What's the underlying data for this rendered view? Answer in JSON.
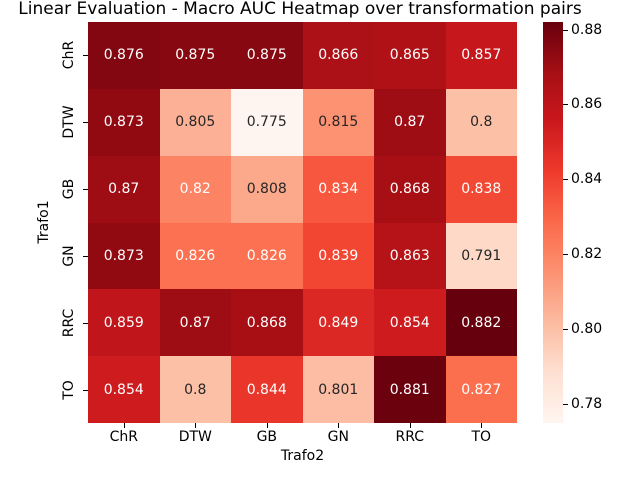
{
  "chart_data": {
    "type": "heatmap",
    "title": "Linear Evaluation - Macro AUC Heatmap over transformation pairs",
    "xlabel": "Trafo2",
    "ylabel": "Trafo1",
    "x_categories": [
      "ChR",
      "DTW",
      "GB",
      "GN",
      "RRC",
      "TO"
    ],
    "y_categories": [
      "ChR",
      "DTW",
      "GB",
      "GN",
      "RRC",
      "TO"
    ],
    "values": [
      [
        0.876,
        0.875,
        0.875,
        0.866,
        0.865,
        0.857
      ],
      [
        0.873,
        0.805,
        0.775,
        0.815,
        0.87,
        0.8
      ],
      [
        0.87,
        0.82,
        0.808,
        0.834,
        0.868,
        0.838
      ],
      [
        0.873,
        0.826,
        0.826,
        0.839,
        0.863,
        0.791
      ],
      [
        0.859,
        0.87,
        0.868,
        0.849,
        0.854,
        0.882
      ],
      [
        0.854,
        0.8,
        0.844,
        0.801,
        0.881,
        0.827
      ]
    ],
    "vmin": 0.775,
    "vmax": 0.882,
    "grid": false,
    "legend": "colorbar-right",
    "colorbar_ticks": [
      {
        "value": 0.88,
        "label": "0.88"
      },
      {
        "value": 0.86,
        "label": "0.86"
      },
      {
        "value": 0.84,
        "label": "0.84"
      },
      {
        "value": 0.82,
        "label": "0.82"
      },
      {
        "value": 0.8,
        "label": "0.80"
      },
      {
        "value": 0.78,
        "label": "0.78"
      }
    ],
    "colormap": {
      "name": "Reds",
      "anchors": [
        {
          "pos": 0.0,
          "rgb": [
            255,
            245,
            240
          ]
        },
        {
          "pos": 0.125,
          "rgb": [
            254,
            224,
            210
          ]
        },
        {
          "pos": 0.25,
          "rgb": [
            252,
            187,
            161
          ]
        },
        {
          "pos": 0.375,
          "rgb": [
            252,
            146,
            114
          ]
        },
        {
          "pos": 0.5,
          "rgb": [
            251,
            106,
            74
          ]
        },
        {
          "pos": 0.625,
          "rgb": [
            239,
            59,
            44
          ]
        },
        {
          "pos": 0.75,
          "rgb": [
            203,
            24,
            29
          ]
        },
        {
          "pos": 0.875,
          "rgb": [
            165,
            15,
            21
          ]
        },
        {
          "pos": 1.0,
          "rgb": [
            103,
            0,
            13
          ]
        }
      ]
    },
    "annotation_colors": {
      "light_text": "#ffffff",
      "dark_text": "#262626",
      "luminance_threshold": 0.408
    },
    "background_color": "#ffffff"
  }
}
